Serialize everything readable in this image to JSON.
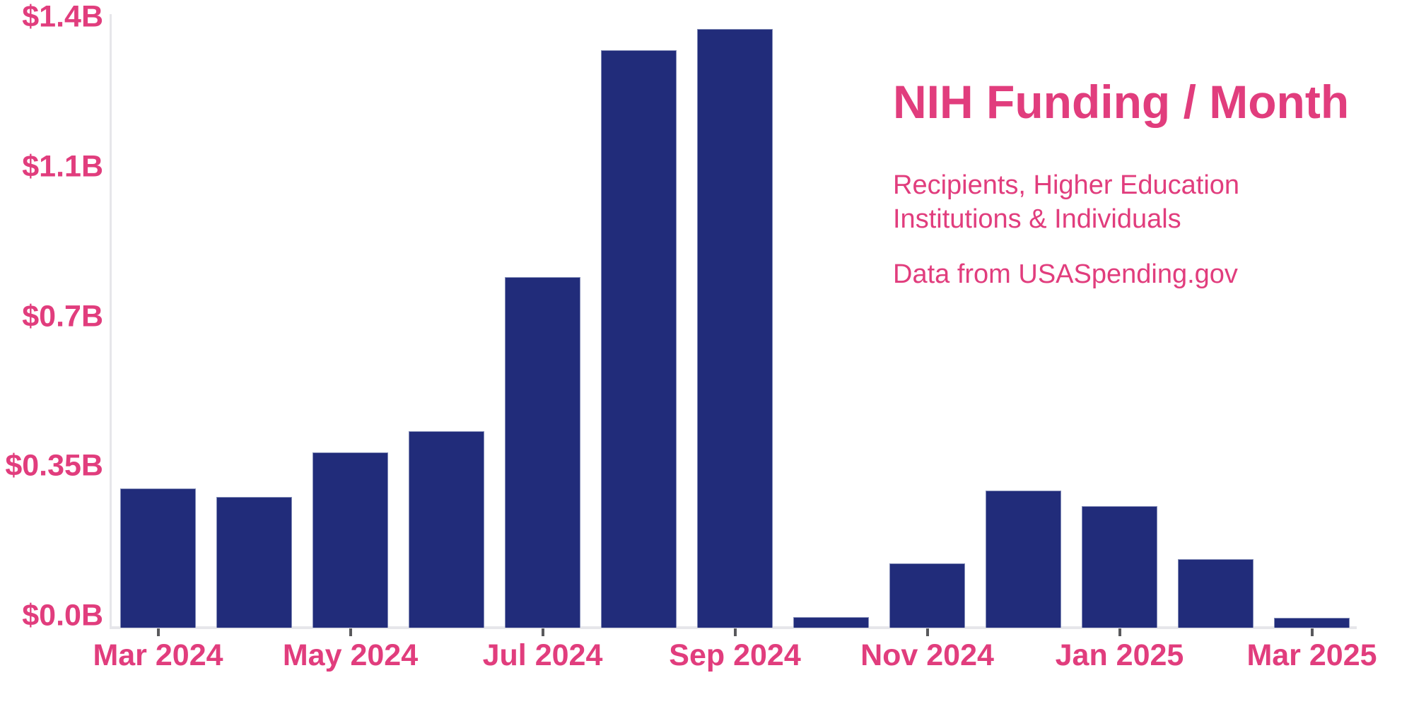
{
  "header": {
    "title": "NIH Funding / Month",
    "subtitle_line1": "Recipients, Higher Education",
    "subtitle_line2": "Institutions & Individuals",
    "source": "Data from USASpending.gov"
  },
  "colors": {
    "accent_pink": "#e13d7d",
    "bar_navy": "#212c7a",
    "axis_light_gray": "#e6e6ea",
    "tick_dark_gray": "#59595c",
    "background": "#ffffff"
  },
  "chart_data": {
    "type": "bar",
    "title": "NIH Funding / Month",
    "subtitle": "Recipients, Higher Education Institutions & Individuals",
    "source": "Data from USASpending.gov",
    "unit": "USD billions per month",
    "categories": [
      "Mar 2024",
      "Apr 2024",
      "May 2024",
      "Jun 2024",
      "Jul 2024",
      "Aug 2024",
      "Sep 2024",
      "Oct 2024",
      "Nov 2024",
      "Dec 2024",
      "Jan 2025",
      "Feb 2025",
      "Mar 2025"
    ],
    "values": [
      0.325,
      0.305,
      0.41,
      0.46,
      0.82,
      1.35,
      1.4,
      0.025,
      0.15,
      0.32,
      0.285,
      0.16,
      0.023
    ],
    "x_tick_labels": [
      "Mar 2024",
      "May 2024",
      "Jul 2024",
      "Sep 2024",
      "Nov 2024",
      "Jan 2025",
      "Mar 2025"
    ],
    "y_tick_labels": [
      "$1.4B",
      "$1.1B",
      "$0.7B",
      "$0.35B",
      "$0.0B"
    ],
    "ylim": [
      0,
      1.4
    ],
    "xlabel": "",
    "ylabel": "",
    "grid": false,
    "legend": false
  }
}
